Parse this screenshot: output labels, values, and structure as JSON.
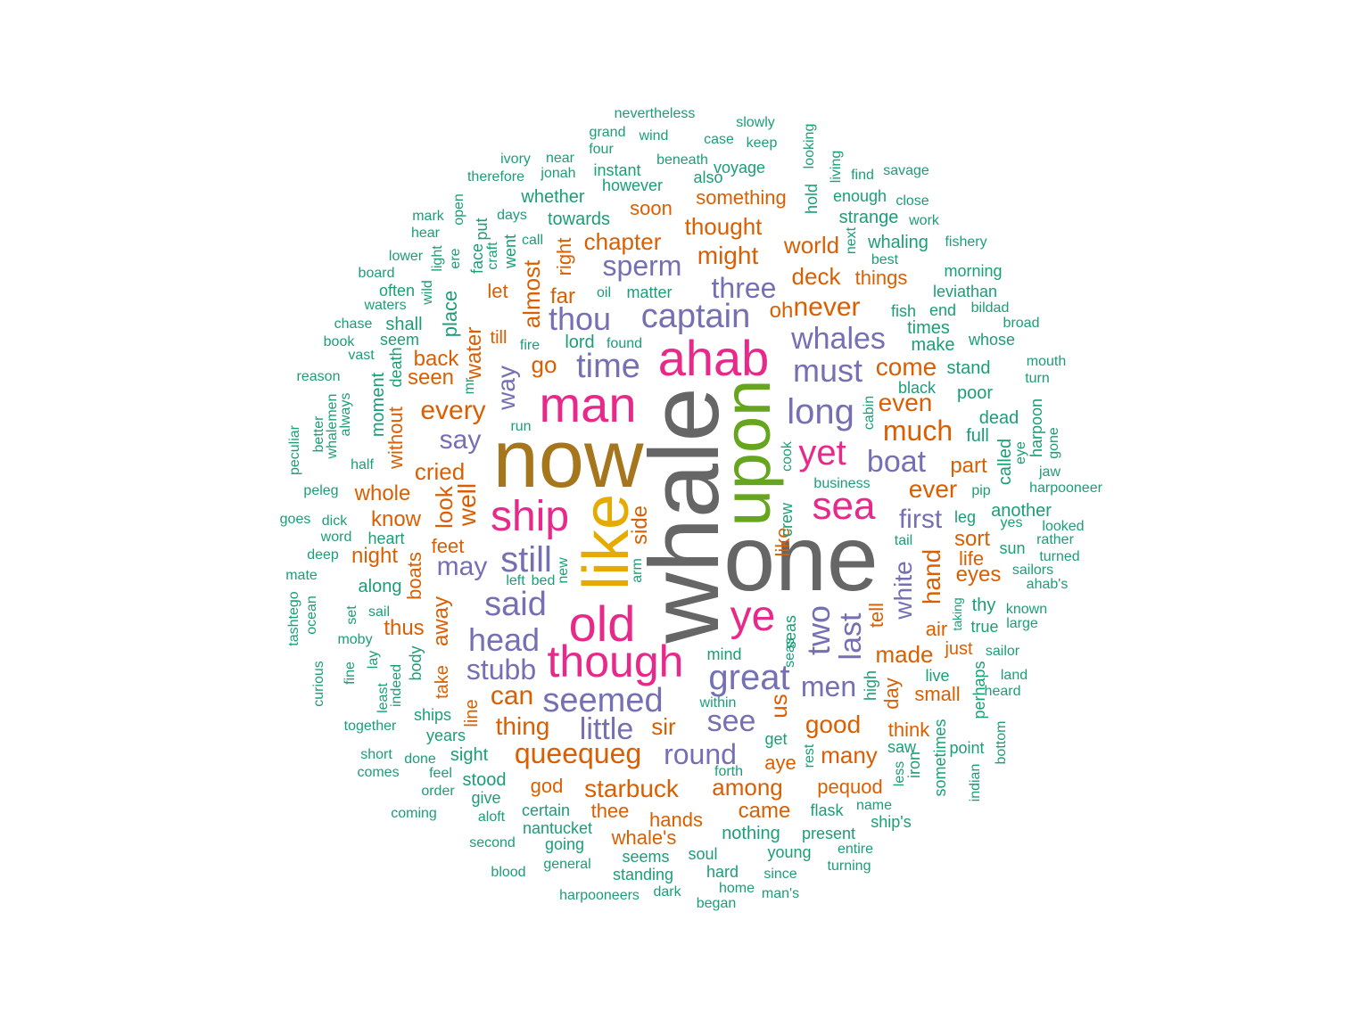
{
  "palette": {
    "c1": "#1b9e77",
    "c2": "#d95f02",
    "c3": "#7570b3",
    "c4": "#e7298a",
    "c5": "#66a61e",
    "c6": "#e6ab02",
    "c7": "#a6761d",
    "c8": "#666666"
  },
  "words": [
    "whale",
    "one",
    "now",
    "upon",
    "like",
    "ahab",
    "man",
    "ship",
    "old",
    "though",
    "ye",
    "sea",
    "yet",
    "time",
    "captain",
    "thou",
    "sperm",
    "three",
    "whales",
    "must",
    "long",
    "boat",
    "still",
    "said",
    "head",
    "stubb",
    "seemed",
    "great",
    "little",
    "see",
    "round",
    "may",
    "say",
    "first",
    "two",
    "last",
    "white",
    "men",
    "queequeg",
    "starbuck",
    "much",
    "well",
    "every",
    "look",
    "way",
    "side",
    "like",
    "never",
    "even",
    "ever",
    "come",
    "chapter",
    "might",
    "thought",
    "deck",
    "world",
    "things",
    "something",
    "soon",
    "almost",
    "right",
    "far",
    "go",
    "back",
    "seen",
    "water",
    "cried",
    "whole",
    "know",
    "night",
    "boats",
    "away",
    "thus",
    "take",
    "feet",
    "can",
    "thing",
    "sir",
    "good",
    "many",
    "aye",
    "among",
    "came",
    "pequod",
    "god",
    "thee",
    "hands",
    "whale's",
    "us",
    "day",
    "think",
    "small",
    "made",
    "air",
    "just",
    "hand",
    "tell",
    "sort",
    "life",
    "eyes",
    "part",
    "line",
    "oh",
    "let",
    "till",
    "without",
    "moment",
    "place",
    "death",
    "nevertheless",
    "slowly",
    "grand",
    "wind",
    "case",
    "keep",
    "ivory",
    "near",
    "four",
    "jonah",
    "instant",
    "beneath",
    "voyage",
    "therefore",
    "however",
    "also",
    "whether",
    "towards",
    "days",
    "strange",
    "work",
    "whaling",
    "fishery",
    "best",
    "morning",
    "leviathan",
    "bildad",
    "fish",
    "end",
    "broad",
    "times",
    "make",
    "whose",
    "stand",
    "mouth",
    "turn",
    "black",
    "poor",
    "dead",
    "full",
    "called",
    "harpoon",
    "gone",
    "eye",
    "jaw",
    "harpooneer",
    "business",
    "crew",
    "cook",
    "cabin",
    "pip",
    "another",
    "leg",
    "yes",
    "looked",
    "tail",
    "rather",
    "sun",
    "turned",
    "sailors",
    "ahab's",
    "thy",
    "known",
    "true",
    "large",
    "sailor",
    "land",
    "live",
    "heard",
    "perhaps",
    "point",
    "indian",
    "bottom",
    "sometimes",
    "iron",
    "less",
    "saw",
    "high",
    "rest",
    "get",
    "within",
    "mind",
    "seas",
    "forth",
    "flask",
    "name",
    "ship's",
    "present",
    "entire",
    "turning",
    "young",
    "since",
    "man's",
    "hard",
    "home",
    "began",
    "soul",
    "seems",
    "standing",
    "dark",
    "harpooneers",
    "nothing",
    "nantucket",
    "certain",
    "going",
    "general",
    "aloft",
    "second",
    "blood",
    "coming",
    "stood",
    "give",
    "order",
    "feel",
    "comes",
    "done",
    "sight",
    "short",
    "years",
    "ships",
    "together",
    "body",
    "indeed",
    "least",
    "lay",
    "fine",
    "curious",
    "moby",
    "sail",
    "set",
    "tashtego",
    "ocean",
    "mate",
    "deep",
    "word",
    "heart",
    "dick",
    "goes",
    "peleg",
    "half",
    "whalemen",
    "better",
    "always",
    "peculiar",
    "reason",
    "vast",
    "book",
    "seem",
    "chase",
    "shall",
    "waters",
    "often",
    "board",
    "lower",
    "hear",
    "mark",
    "open",
    "wild",
    "light",
    "ere",
    "put",
    "face",
    "craft",
    "went",
    "call",
    "mr",
    "run",
    "fire",
    "lord",
    "found",
    "oil",
    "matter",
    "along",
    "hold",
    "looking",
    "living",
    "find",
    "savage",
    "enough",
    "close",
    "next",
    "new",
    "left",
    "bed",
    "arm",
    "taking",
    "seas"
  ]
}
